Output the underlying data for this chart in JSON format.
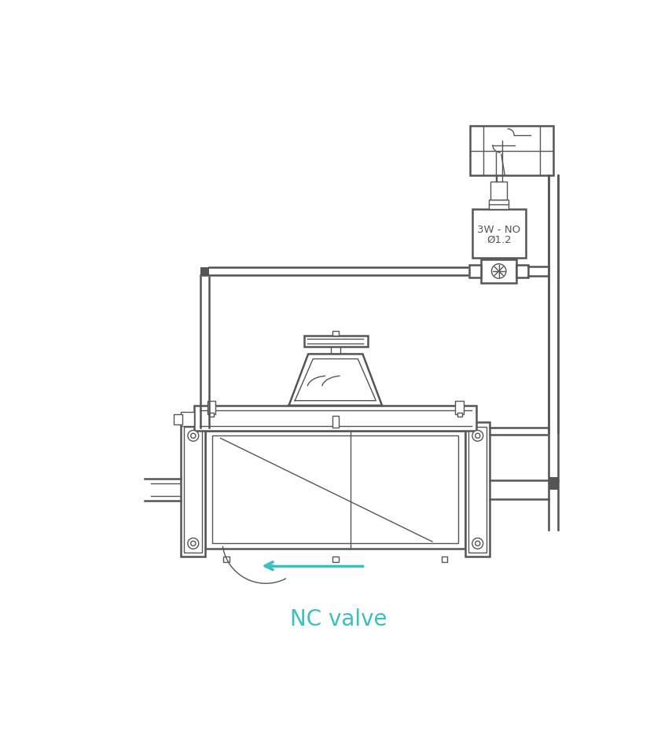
{
  "title": "NC valve",
  "title_color": "#3bbfbf",
  "title_fontsize": 20,
  "line_color": "#555555",
  "line_width": 1.4,
  "bg_color": "#ffffff",
  "solenoid_label_line1": "3W - NO",
  "solenoid_label_line2": "Ø1.2",
  "arrow_color": "#3bbfbf",
  "fig_width": 8.41,
  "fig_height": 9.3
}
